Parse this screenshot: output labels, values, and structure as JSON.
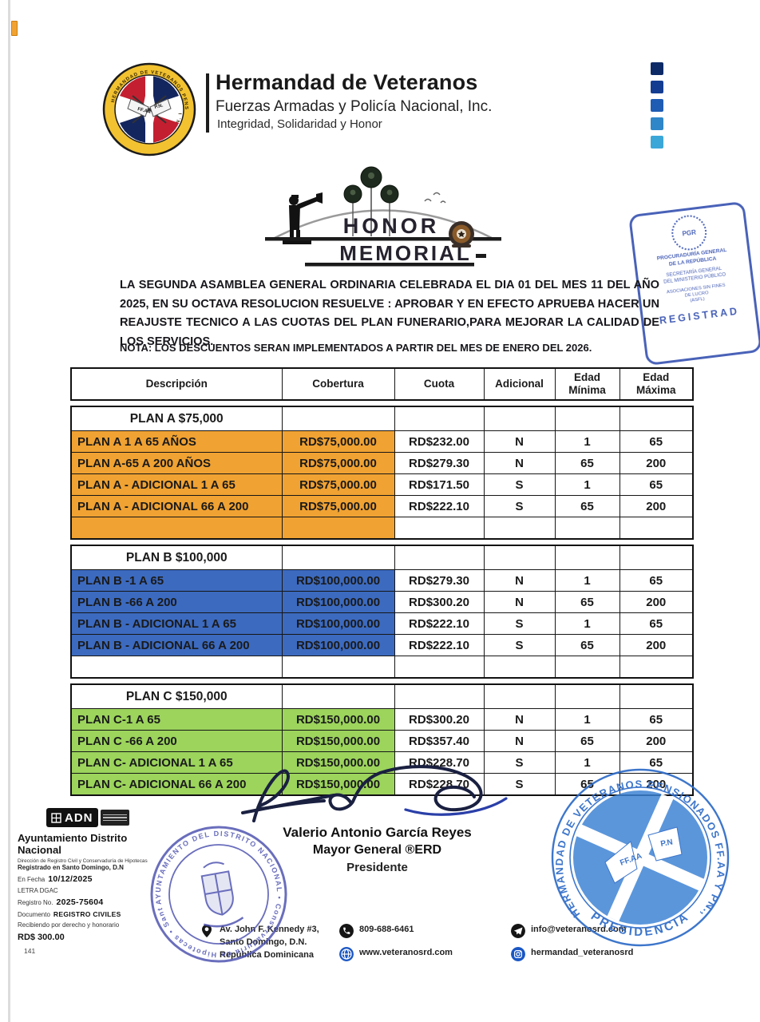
{
  "header": {
    "org_name": "Hermandad de Veteranos",
    "org_subtitle": "Fuerzas Armadas y Policía Nacional, Inc.",
    "org_motto": "Integridad, Solidaridad y Honor",
    "logo_ring_top": "HERMANDAD DE VETERANOS PENSIONADOS",
    "logo_ring_bottom": "DE LAS FF.AA. Y P.N. INC.",
    "logo_flag_left": "FF.AA",
    "logo_flag_right": "P.N.",
    "accent_squares": [
      "#0e2a66",
      "#143d92",
      "#1f5cb4",
      "#2f86c8",
      "#3ba7d8"
    ]
  },
  "memorial": {
    "line1": "HONOR",
    "line2": "MEMORIAL"
  },
  "registry_stamp": {
    "seal": "PGR",
    "line1": "PROCURADURÍA GENERAL",
    "line2": "DE LA REPÚBLICA",
    "line3": "SECRETARÍA GENERAL",
    "line4": "DEL MINISTERIO PÚBLICO",
    "line5": "ASOCIACIONES SIN FINES",
    "line6": "DE LUCRO",
    "line7": "(ASFL)",
    "bottom": "REGISTRAD"
  },
  "body": {
    "paragraph": "LA SEGUNDA ASAMBLEA GENERAL ORDINARIA CELEBRADA EL DIA 01 DEL MES 11 DEL AÑO 2025, EN SU OCTAVA RESOLUCION RESUELVE : APROBAR Y EN EFECTO APRUEBA HACER UN REAJUSTE TECNICO A LAS CUOTAS DEL PLAN FUNERARIO,PARA MEJORAR LA CALIDAD DE LOS SERVICIOS.",
    "nota": "NOTA: LOS DESCUENTOS SERAN IMPLEMENTADOS A PARTIR DEL MES DE ENERO DEL 2026."
  },
  "table": {
    "headers": [
      "Descripción",
      "Cobertura",
      "Cuota",
      "Adicional",
      "Edad\nMínima",
      "Edad\nMáxima"
    ],
    "sections": [
      {
        "title": "PLAN A $75,000",
        "color": "#f0a232",
        "empty_row": "colored",
        "rows": [
          [
            "PLAN A 1 A 65 AÑOS",
            "RD$75,000.00",
            "RD$232.00",
            "N",
            "1",
            "65"
          ],
          [
            "PLAN A-65 A 200 AÑOS",
            "RD$75,000.00",
            "RD$279.30",
            "N",
            "65",
            "200"
          ],
          [
            "PLAN A - ADICIONAL 1 A 65",
            "RD$75,000.00",
            "RD$171.50",
            "S",
            "1",
            "65"
          ],
          [
            "PLAN A - ADICIONAL 66 A 200",
            "RD$75,000.00",
            "RD$222.10",
            "S",
            "65",
            "200"
          ]
        ]
      },
      {
        "title": "PLAN B $100,000",
        "color": "#3c6abf",
        "empty_row": "white",
        "rows": [
          [
            "PLAN B -1 A 65",
            "RD$100,000.00",
            "RD$279.30",
            "N",
            "1",
            "65"
          ],
          [
            "PLAN B -66 A 200",
            "RD$100,000.00",
            "RD$300.20",
            "N",
            "65",
            "200"
          ],
          [
            "PLAN B - ADICIONAL 1 A 65",
            "RD$100,000.00",
            "RD$222.10",
            "S",
            "1",
            "65"
          ],
          [
            "PLAN B - ADICIONAL 66 A 200",
            "RD$100,000.00",
            "RD$222.10",
            "S",
            "65",
            "200"
          ]
        ]
      },
      {
        "title": "PLAN C $150,000",
        "color": "#9cd45c",
        "empty_row": null,
        "rows": [
          [
            "PLAN C-1 A 65",
            "RD$150,000.00",
            "RD$300.20",
            "N",
            "1",
            "65"
          ],
          [
            "PLAN C -66 A 200",
            "RD$150,000.00",
            "RD$357.40",
            "N",
            "65",
            "200"
          ],
          [
            "PLAN C- ADICIONAL 1 A 65",
            "RD$150,000.00",
            "RD$228.70",
            "S",
            "1",
            "65"
          ],
          [
            "PLAN C- ADICIONAL 66 A 200",
            "RD$150,000.00",
            "RD$228.70",
            "S",
            "65",
            "200"
          ]
        ]
      }
    ]
  },
  "signature": {
    "name": "Valerio Antonio García Reyes",
    "rank": "Mayor General ®ERD",
    "title": "Presidente"
  },
  "adn": {
    "logo": "ADN",
    "title": "Ayuntamiento Distrito Nacional",
    "line1": "Dirección de Registro Civil y Conservaduría de Hipotecas",
    "line2": "Registrado en Santo Domingo, D.N",
    "fecha_label": "En Fecha",
    "fecha": "10/12/2025",
    "letra": "LETRA  DGAC",
    "registro_label": "Registro No.",
    "registro": "2025-75604",
    "documento_label": "Documento",
    "documento": "REGISTRO CIVILES",
    "recibido": "Recibiendo por derecho y honorario",
    "monto": "RD$ 300.00",
    "page_number": "141"
  },
  "left_stamp": {
    "ring_text": "AYUNTAMIENTO DEL DISTRITO NACIONAL • Conservaduría de Hipotecas • Santo Domingo • D.N. •"
  },
  "right_stamp": {
    "ring_text": "HERMANDAD DE VETERANOS PENSIONADOS FF.AA Y PN., INC.",
    "bottom_text": "PRESIDENCIA",
    "flag_left": "FF.AA",
    "flag_right": "P.N"
  },
  "footer": {
    "items": [
      {
        "icon": "location",
        "text": "Av. John F. Kennedy #3,\nSanto Domingo, D.N.\nRepública Dominicana"
      },
      {
        "icon": "phone",
        "text": "809-688-6461"
      },
      {
        "icon": "globe",
        "text": "www.veteranosrd.com"
      },
      {
        "icon": "telegram",
        "text": "info@veteranosrd.com"
      },
      {
        "icon": "instagram",
        "text": "hermandad_veteranosrd"
      }
    ]
  }
}
